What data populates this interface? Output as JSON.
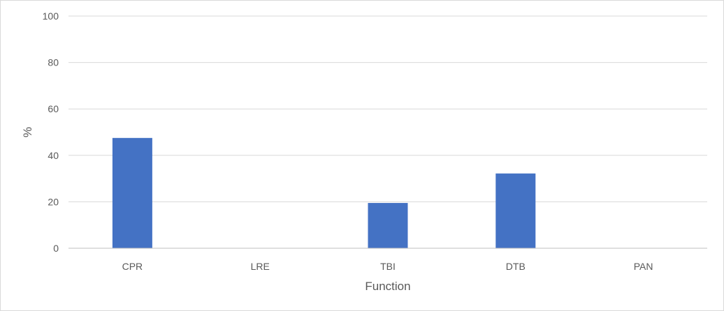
{
  "chart_data": {
    "type": "bar",
    "title": "",
    "xlabel": "Function",
    "ylabel": "%",
    "categories": [
      "CPR",
      "LRE",
      "TBI",
      "DTB",
      "PAN"
    ],
    "series": [
      {
        "values": [
          47.5,
          0,
          19.5,
          32.2,
          0
        ]
      }
    ],
    "ylim": [
      0,
      100
    ],
    "yticks": [
      "0",
      "20",
      "40",
      "60",
      "80",
      "100"
    ],
    "grid": true,
    "legend": "none",
    "colors": {
      "bar": "#4472C4",
      "grid": "#d9d9d9",
      "axis": "#bfbfbf",
      "text": "#595959"
    }
  }
}
